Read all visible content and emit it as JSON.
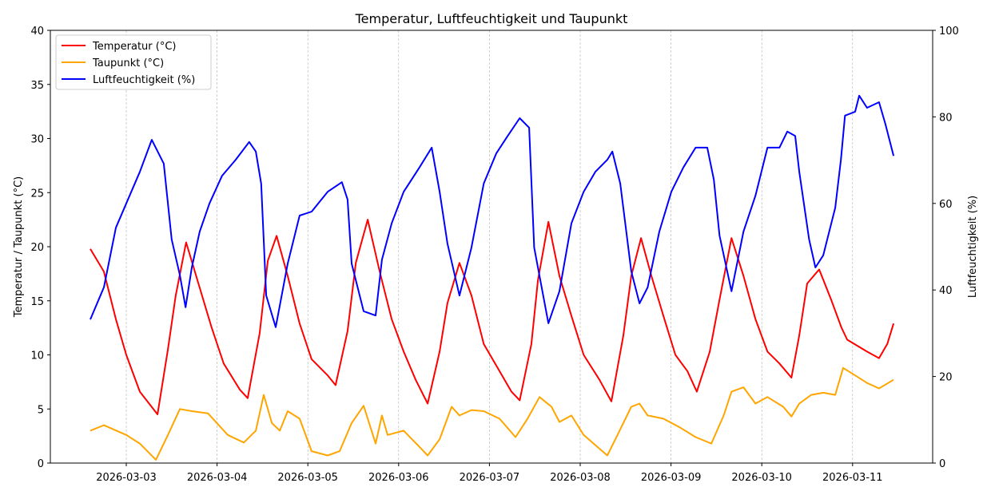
{
  "chart_data": {
    "type": "line",
    "title": "Temperatur, Luftfeuchtigkeit und Taupunkt",
    "xlabel": "",
    "ylabel": "Temperatur / Taupunkt (°C)",
    "y2label": "Luftfeuchtigkeit (%)",
    "ylim": [
      0,
      40
    ],
    "y2lim": [
      0,
      100
    ],
    "yticks": [
      "0",
      "5",
      "10",
      "15",
      "20",
      "25",
      "30",
      "35",
      "40"
    ],
    "y2ticks": [
      "0",
      "20",
      "40",
      "60",
      "80",
      "100"
    ],
    "xticks": [
      "2026-03-03",
      "2026-03-04",
      "2026-03-05",
      "2026-03-06",
      "2026-03-07",
      "2026-03-08",
      "2026-03-09",
      "2026-03-10",
      "2026-03-11"
    ],
    "grid": "vertical dashed",
    "legend_position": "top-left",
    "series": [
      {
        "name": "Temperatur (°C)",
        "axis": "left",
        "color": "#ff0000",
        "points": [
          [
            "2026-03-02T14:30",
            19.8
          ],
          [
            "2026-03-02T18:05",
            17.7
          ],
          [
            "2026-03-02T21:15",
            13.3
          ],
          [
            "2026-03-03T00:00",
            10.0
          ],
          [
            "2026-03-03T03:35",
            6.6
          ],
          [
            "2026-03-03T08:15",
            4.5
          ],
          [
            "2026-03-03T11:00",
            10.5
          ],
          [
            "2026-03-03T13:05",
            15.5
          ],
          [
            "2026-03-03T15:50",
            20.4
          ],
          [
            "2026-03-03T19:25",
            16.2
          ],
          [
            "2026-03-03T22:35",
            12.5
          ],
          [
            "2026-03-04T01:45",
            9.2
          ],
          [
            "2026-03-04T06:00",
            6.8
          ],
          [
            "2026-03-04T08:05",
            6.0
          ],
          [
            "2026-03-04T11:15",
            12.0
          ],
          [
            "2026-03-04T13:25",
            18.7
          ],
          [
            "2026-03-04T15:45",
            21.0
          ],
          [
            "2026-03-04T18:40",
            17.3
          ],
          [
            "2026-03-04T21:50",
            12.9
          ],
          [
            "2026-03-05T01:00",
            9.6
          ],
          [
            "2026-03-05T05:15",
            8.1
          ],
          [
            "2026-03-05T07:20",
            7.2
          ],
          [
            "2026-03-05T10:30",
            12.2
          ],
          [
            "2026-03-05T12:40",
            18.5
          ],
          [
            "2026-03-05T15:50",
            22.5
          ],
          [
            "2026-03-05T19:00",
            17.7
          ],
          [
            "2026-03-05T22:10",
            13.3
          ],
          [
            "2026-03-06T01:20",
            10.3
          ],
          [
            "2026-03-06T04:30",
            7.7
          ],
          [
            "2026-03-06T07:40",
            5.5
          ],
          [
            "2026-03-06T10:50",
            10.3
          ],
          [
            "2026-03-06T12:55",
            14.8
          ],
          [
            "2026-03-06T16:05",
            18.5
          ],
          [
            "2026-03-06T19:15",
            15.5
          ],
          [
            "2026-03-06T22:30",
            11.0
          ],
          [
            "2026-03-07T02:40",
            8.5
          ],
          [
            "2026-03-07T05:50",
            6.6
          ],
          [
            "2026-03-07T08:00",
            5.8
          ],
          [
            "2026-03-07T11:05",
            11.0
          ],
          [
            "2026-03-07T12:50",
            16.9
          ],
          [
            "2026-03-07T15:35",
            22.3
          ],
          [
            "2026-03-07T18:30",
            17.3
          ],
          [
            "2026-03-07T21:40",
            13.6
          ],
          [
            "2026-03-08T00:55",
            10.0
          ],
          [
            "2026-03-08T05:05",
            7.7
          ],
          [
            "2026-03-08T08:15",
            5.7
          ],
          [
            "2026-03-08T11:25",
            11.8
          ],
          [
            "2026-03-08T13:30",
            17.3
          ],
          [
            "2026-03-08T16:05",
            20.8
          ],
          [
            "2026-03-08T18:50",
            17.3
          ],
          [
            "2026-03-08T22:00",
            13.6
          ],
          [
            "2026-03-09T01:10",
            10.0
          ],
          [
            "2026-03-09T04:20",
            8.5
          ],
          [
            "2026-03-09T06:50",
            6.6
          ],
          [
            "2026-03-09T10:15",
            10.3
          ],
          [
            "2026-03-09T12:50",
            15.1
          ],
          [
            "2026-03-09T16:00",
            20.8
          ],
          [
            "2026-03-09T19:10",
            17.3
          ],
          [
            "2026-03-09T22:20",
            13.3
          ],
          [
            "2026-03-10T01:30",
            10.3
          ],
          [
            "2026-03-10T04:40",
            9.2
          ],
          [
            "2026-03-10T07:50",
            7.9
          ],
          [
            "2026-03-10T09:55",
            11.8
          ],
          [
            "2026-03-10T12:00",
            16.6
          ],
          [
            "2026-03-10T15:10",
            17.9
          ],
          [
            "2026-03-10T18:20",
            15.1
          ],
          [
            "2026-03-10T21:05",
            12.5
          ],
          [
            "2026-03-10T22:35",
            11.4
          ],
          [
            "2026-03-11T03:50",
            10.3
          ],
          [
            "2026-03-11T07:00",
            9.7
          ],
          [
            "2026-03-11T09:10",
            11.0
          ],
          [
            "2026-03-11T10:50",
            12.9
          ]
        ]
      },
      {
        "name": "Taupunkt (°C)",
        "axis": "left",
        "color": "#ffa500",
        "points": [
          [
            "2026-03-02T14:30",
            3.0
          ],
          [
            "2026-03-02T18:05",
            3.5
          ],
          [
            "2026-03-03T00:00",
            2.6
          ],
          [
            "2026-03-03T03:35",
            1.8
          ],
          [
            "2026-03-03T07:50",
            0.3
          ],
          [
            "2026-03-03T11:00",
            2.6
          ],
          [
            "2026-03-03T14:10",
            5.0
          ],
          [
            "2026-03-03T17:20",
            4.8
          ],
          [
            "2026-03-03T21:35",
            4.6
          ],
          [
            "2026-03-04T02:50",
            2.6
          ],
          [
            "2026-03-04T07:05",
            1.9
          ],
          [
            "2026-03-04T10:15",
            3.0
          ],
          [
            "2026-03-04T12:20",
            6.3
          ],
          [
            "2026-03-04T14:30",
            3.7
          ],
          [
            "2026-03-04T16:35",
            3.0
          ],
          [
            "2026-03-04T18:40",
            4.8
          ],
          [
            "2026-03-04T21:50",
            4.1
          ],
          [
            "2026-03-05T01:00",
            1.1
          ],
          [
            "2026-03-05T05:15",
            0.7
          ],
          [
            "2026-03-05T08:25",
            1.1
          ],
          [
            "2026-03-05T11:35",
            3.7
          ],
          [
            "2026-03-05T14:45",
            5.3
          ],
          [
            "2026-03-05T17:55",
            1.8
          ],
          [
            "2026-03-05T19:35",
            4.4
          ],
          [
            "2026-03-05T21:05",
            2.6
          ],
          [
            "2026-03-06T01:20",
            3.0
          ],
          [
            "2026-03-06T05:30",
            1.5
          ],
          [
            "2026-03-06T07:40",
            0.7
          ],
          [
            "2026-03-06T10:50",
            2.2
          ],
          [
            "2026-03-06T14:00",
            5.2
          ],
          [
            "2026-03-06T16:05",
            4.4
          ],
          [
            "2026-03-06T19:15",
            4.9
          ],
          [
            "2026-03-06T22:30",
            4.8
          ],
          [
            "2026-03-07T02:40",
            4.1
          ],
          [
            "2026-03-07T06:55",
            2.4
          ],
          [
            "2026-03-07T10:05",
            4.1
          ],
          [
            "2026-03-07T13:15",
            6.1
          ],
          [
            "2026-03-07T16:25",
            5.2
          ],
          [
            "2026-03-07T18:30",
            3.8
          ],
          [
            "2026-03-07T21:40",
            4.4
          ],
          [
            "2026-03-08T00:55",
            2.6
          ],
          [
            "2026-03-08T07:10",
            0.7
          ],
          [
            "2026-03-08T10:25",
            3.0
          ],
          [
            "2026-03-08T13:30",
            5.2
          ],
          [
            "2026-03-08T15:40",
            5.5
          ],
          [
            "2026-03-08T17:50",
            4.4
          ],
          [
            "2026-03-08T22:00",
            4.1
          ],
          [
            "2026-03-09T02:20",
            3.3
          ],
          [
            "2026-03-09T06:30",
            2.4
          ],
          [
            "2026-03-09T10:40",
            1.8
          ],
          [
            "2026-03-09T13:55",
            4.4
          ],
          [
            "2026-03-09T16:00",
            6.6
          ],
          [
            "2026-03-09T19:10",
            7.0
          ],
          [
            "2026-03-09T22:20",
            5.5
          ],
          [
            "2026-03-10T01:30",
            6.1
          ],
          [
            "2026-03-10T05:40",
            5.2
          ],
          [
            "2026-03-10T07:50",
            4.3
          ],
          [
            "2026-03-10T09:55",
            5.5
          ],
          [
            "2026-03-10T13:05",
            6.3
          ],
          [
            "2026-03-10T16:15",
            6.5
          ],
          [
            "2026-03-10T19:25",
            6.3
          ],
          [
            "2026-03-10T21:30",
            8.8
          ],
          [
            "2026-03-11T00:40",
            8.1
          ],
          [
            "2026-03-11T03:50",
            7.4
          ],
          [
            "2026-03-11T07:00",
            6.9
          ],
          [
            "2026-03-11T10:50",
            7.7
          ]
        ]
      },
      {
        "name": "Luftfeuchtigkeit (%)",
        "axis": "right",
        "color": "#0000ff",
        "points": [
          [
            "2026-03-02T14:30",
            33.2
          ],
          [
            "2026-03-02T18:05",
            40.6
          ],
          [
            "2026-03-02T21:15",
            54.4
          ],
          [
            "2026-03-03T00:00",
            60.0
          ],
          [
            "2026-03-03T03:35",
            67.3
          ],
          [
            "2026-03-03T06:45",
            74.7
          ],
          [
            "2026-03-03T09:55",
            69.2
          ],
          [
            "2026-03-03T12:00",
            51.7
          ],
          [
            "2026-03-03T14:10",
            43.4
          ],
          [
            "2026-03-03T15:40",
            36.0
          ],
          [
            "2026-03-03T17:20",
            45.2
          ],
          [
            "2026-03-03T19:25",
            53.5
          ],
          [
            "2026-03-03T22:00",
            60.0
          ],
          [
            "2026-03-04T01:20",
            66.4
          ],
          [
            "2026-03-04T04:55",
            70.1
          ],
          [
            "2026-03-04T08:30",
            74.2
          ],
          [
            "2026-03-04T10:15",
            72.0
          ],
          [
            "2026-03-04T11:40",
            64.6
          ],
          [
            "2026-03-04T13:00",
            38.7
          ],
          [
            "2026-03-04T15:30",
            31.4
          ],
          [
            "2026-03-04T18:40",
            46.1
          ],
          [
            "2026-03-04T21:50",
            57.2
          ],
          [
            "2026-03-05T01:00",
            58.1
          ],
          [
            "2026-03-05T05:15",
            62.7
          ],
          [
            "2026-03-05T09:00",
            64.9
          ],
          [
            "2026-03-05T10:30",
            60.9
          ],
          [
            "2026-03-05T11:35",
            46.1
          ],
          [
            "2026-03-05T14:45",
            35.1
          ],
          [
            "2026-03-05T17:55",
            34.1
          ],
          [
            "2026-03-05T19:35",
            47.0
          ],
          [
            "2026-03-05T22:10",
            55.4
          ],
          [
            "2026-03-06T01:20",
            62.7
          ],
          [
            "2026-03-06T05:30",
            68.3
          ],
          [
            "2026-03-06T08:45",
            72.9
          ],
          [
            "2026-03-06T10:50",
            62.7
          ],
          [
            "2026-03-06T12:55",
            50.7
          ],
          [
            "2026-03-06T16:05",
            38.7
          ],
          [
            "2026-03-06T19:15",
            49.8
          ],
          [
            "2026-03-06T22:30",
            64.6
          ],
          [
            "2026-03-07T01:50",
            71.6
          ],
          [
            "2026-03-07T04:50",
            75.6
          ],
          [
            "2026-03-07T08:00",
            79.7
          ],
          [
            "2026-03-07T10:30",
            77.5
          ],
          [
            "2026-03-07T11:50",
            49.8
          ],
          [
            "2026-03-07T15:35",
            32.3
          ],
          [
            "2026-03-07T18:30",
            39.7
          ],
          [
            "2026-03-07T21:40",
            55.4
          ],
          [
            "2026-03-08T00:55",
            62.7
          ],
          [
            "2026-03-08T04:00",
            67.3
          ],
          [
            "2026-03-08T07:10",
            70.1
          ],
          [
            "2026-03-08T08:30",
            72.0
          ],
          [
            "2026-03-08T10:35",
            64.6
          ],
          [
            "2026-03-08T13:30",
            44.3
          ],
          [
            "2026-03-08T15:40",
            36.9
          ],
          [
            "2026-03-08T17:50",
            40.6
          ],
          [
            "2026-03-08T20:55",
            53.5
          ],
          [
            "2026-03-09T00:05",
            62.7
          ],
          [
            "2026-03-09T03:15",
            68.3
          ],
          [
            "2026-03-09T06:30",
            72.9
          ],
          [
            "2026-03-09T09:35",
            72.9
          ],
          [
            "2026-03-09T11:20",
            65.5
          ],
          [
            "2026-03-09T12:50",
            52.6
          ],
          [
            "2026-03-09T16:00",
            39.7
          ],
          [
            "2026-03-09T19:10",
            53.5
          ],
          [
            "2026-03-09T22:20",
            61.8
          ],
          [
            "2026-03-10T01:30",
            72.9
          ],
          [
            "2026-03-10T04:40",
            72.9
          ],
          [
            "2026-03-10T06:45",
            76.6
          ],
          [
            "2026-03-10T08:50",
            75.6
          ],
          [
            "2026-03-10T09:55",
            67.3
          ],
          [
            "2026-03-10T12:30",
            51.7
          ],
          [
            "2026-03-10T14:10",
            45.2
          ],
          [
            "2026-03-10T16:15",
            48.0
          ],
          [
            "2026-03-10T19:25",
            59.0
          ],
          [
            "2026-03-10T20:55",
            70.1
          ],
          [
            "2026-03-10T22:00",
            80.3
          ],
          [
            "2026-03-11T00:40",
            81.2
          ],
          [
            "2026-03-11T01:45",
            84.9
          ],
          [
            "2026-03-11T03:50",
            82.1
          ],
          [
            "2026-03-11T07:00",
            83.4
          ],
          [
            "2026-03-11T08:40",
            78.4
          ],
          [
            "2026-03-11T10:50",
            71.0
          ]
        ]
      }
    ]
  }
}
